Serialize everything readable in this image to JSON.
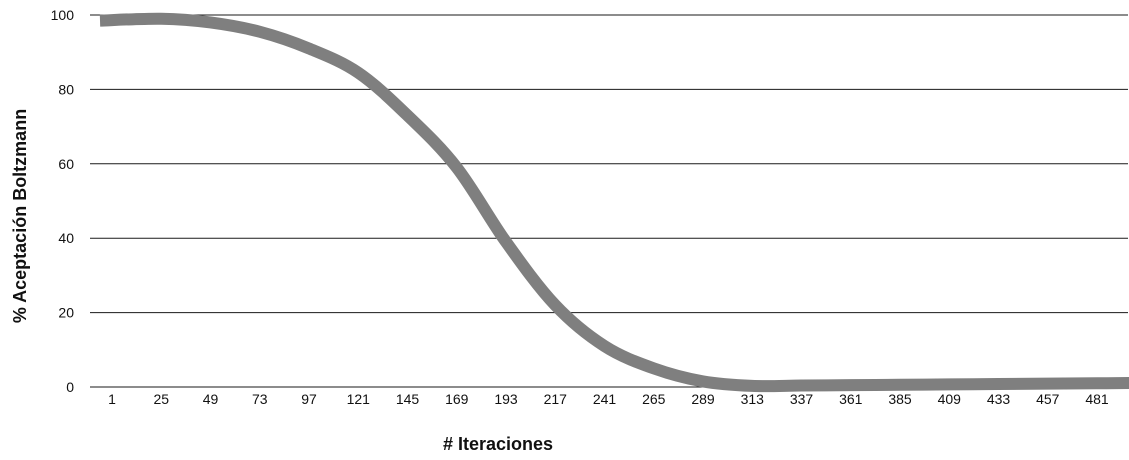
{
  "chart_data": {
    "type": "line",
    "title": "",
    "xlabel": "# Iteraciones",
    "ylabel": "% Aceptación Boltzmann",
    "ylim": [
      0,
      100
    ],
    "yticks": [
      0,
      20,
      40,
      60,
      80,
      100
    ],
    "grid": true,
    "legend": "none",
    "categories": [
      "1",
      "25",
      "49",
      "73",
      "97",
      "121",
      "145",
      "169",
      "193",
      "217",
      "241",
      "265",
      "289",
      "313",
      "337",
      "361",
      "385",
      "409",
      "433",
      "457",
      "481"
    ],
    "x": [
      1,
      25,
      49,
      73,
      97,
      121,
      145,
      169,
      193,
      217,
      241,
      265,
      289,
      313,
      337,
      361,
      385,
      409,
      433,
      457,
      481,
      500
    ],
    "series": [
      {
        "color": "#7f7f7f",
        "values": [
          98.5,
          99,
          98,
          95.5,
          91,
          84.5,
          73,
          59,
          39,
          22,
          11,
          5,
          1.5,
          0.3,
          0.4,
          0.5,
          0.6,
          0.7,
          0.8,
          0.9,
          1.0,
          1.1
        ]
      }
    ]
  }
}
